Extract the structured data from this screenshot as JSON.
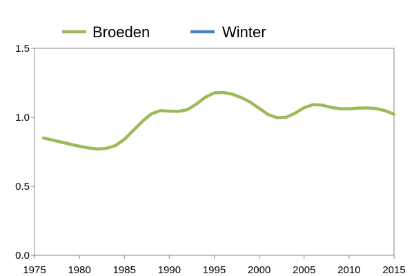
{
  "chart_data": {
    "type": "line",
    "title": "",
    "xlabel": "",
    "ylabel": "",
    "xlim": [
      1975,
      2015
    ],
    "ylim": [
      0.0,
      1.5
    ],
    "x_ticks": [
      1975,
      1980,
      1985,
      1990,
      1995,
      2000,
      2005,
      2010,
      2015
    ],
    "y_ticks": [
      0.0,
      0.5,
      1.0,
      1.5
    ],
    "x_tick_labels": [
      "1975",
      "1980",
      "1985",
      "1990",
      "1995",
      "2000",
      "2005",
      "2010",
      "2015"
    ],
    "y_tick_labels": [
      "0.0",
      "0.5",
      "1.0",
      "1.5"
    ],
    "grid": false,
    "legend_position": "top",
    "series": [
      {
        "name": "Broeden",
        "color": "#9bbb59",
        "x": [
          1976,
          1977,
          1978,
          1979,
          1980,
          1981,
          1982,
          1983,
          1984,
          1985,
          1986,
          1987,
          1988,
          1989,
          1990,
          1991,
          1992,
          1993,
          1994,
          1995,
          1996,
          1997,
          1998,
          1999,
          2000,
          2001,
          2002,
          2003,
          2004,
          2005,
          2006,
          2007,
          2008,
          2009,
          2010,
          2011,
          2012,
          2013,
          2014,
          2015
        ],
        "values": [
          0.85,
          0.835,
          0.82,
          0.805,
          0.79,
          0.778,
          0.77,
          0.775,
          0.795,
          0.84,
          0.905,
          0.97,
          1.025,
          1.048,
          1.045,
          1.043,
          1.055,
          1.095,
          1.145,
          1.177,
          1.18,
          1.168,
          1.143,
          1.11,
          1.065,
          1.02,
          0.997,
          1.0,
          1.03,
          1.07,
          1.092,
          1.088,
          1.072,
          1.062,
          1.062,
          1.066,
          1.068,
          1.064,
          1.048,
          1.022
        ]
      },
      {
        "name": "Winter",
        "color": "#4f81bd",
        "x": [],
        "values": []
      }
    ]
  }
}
